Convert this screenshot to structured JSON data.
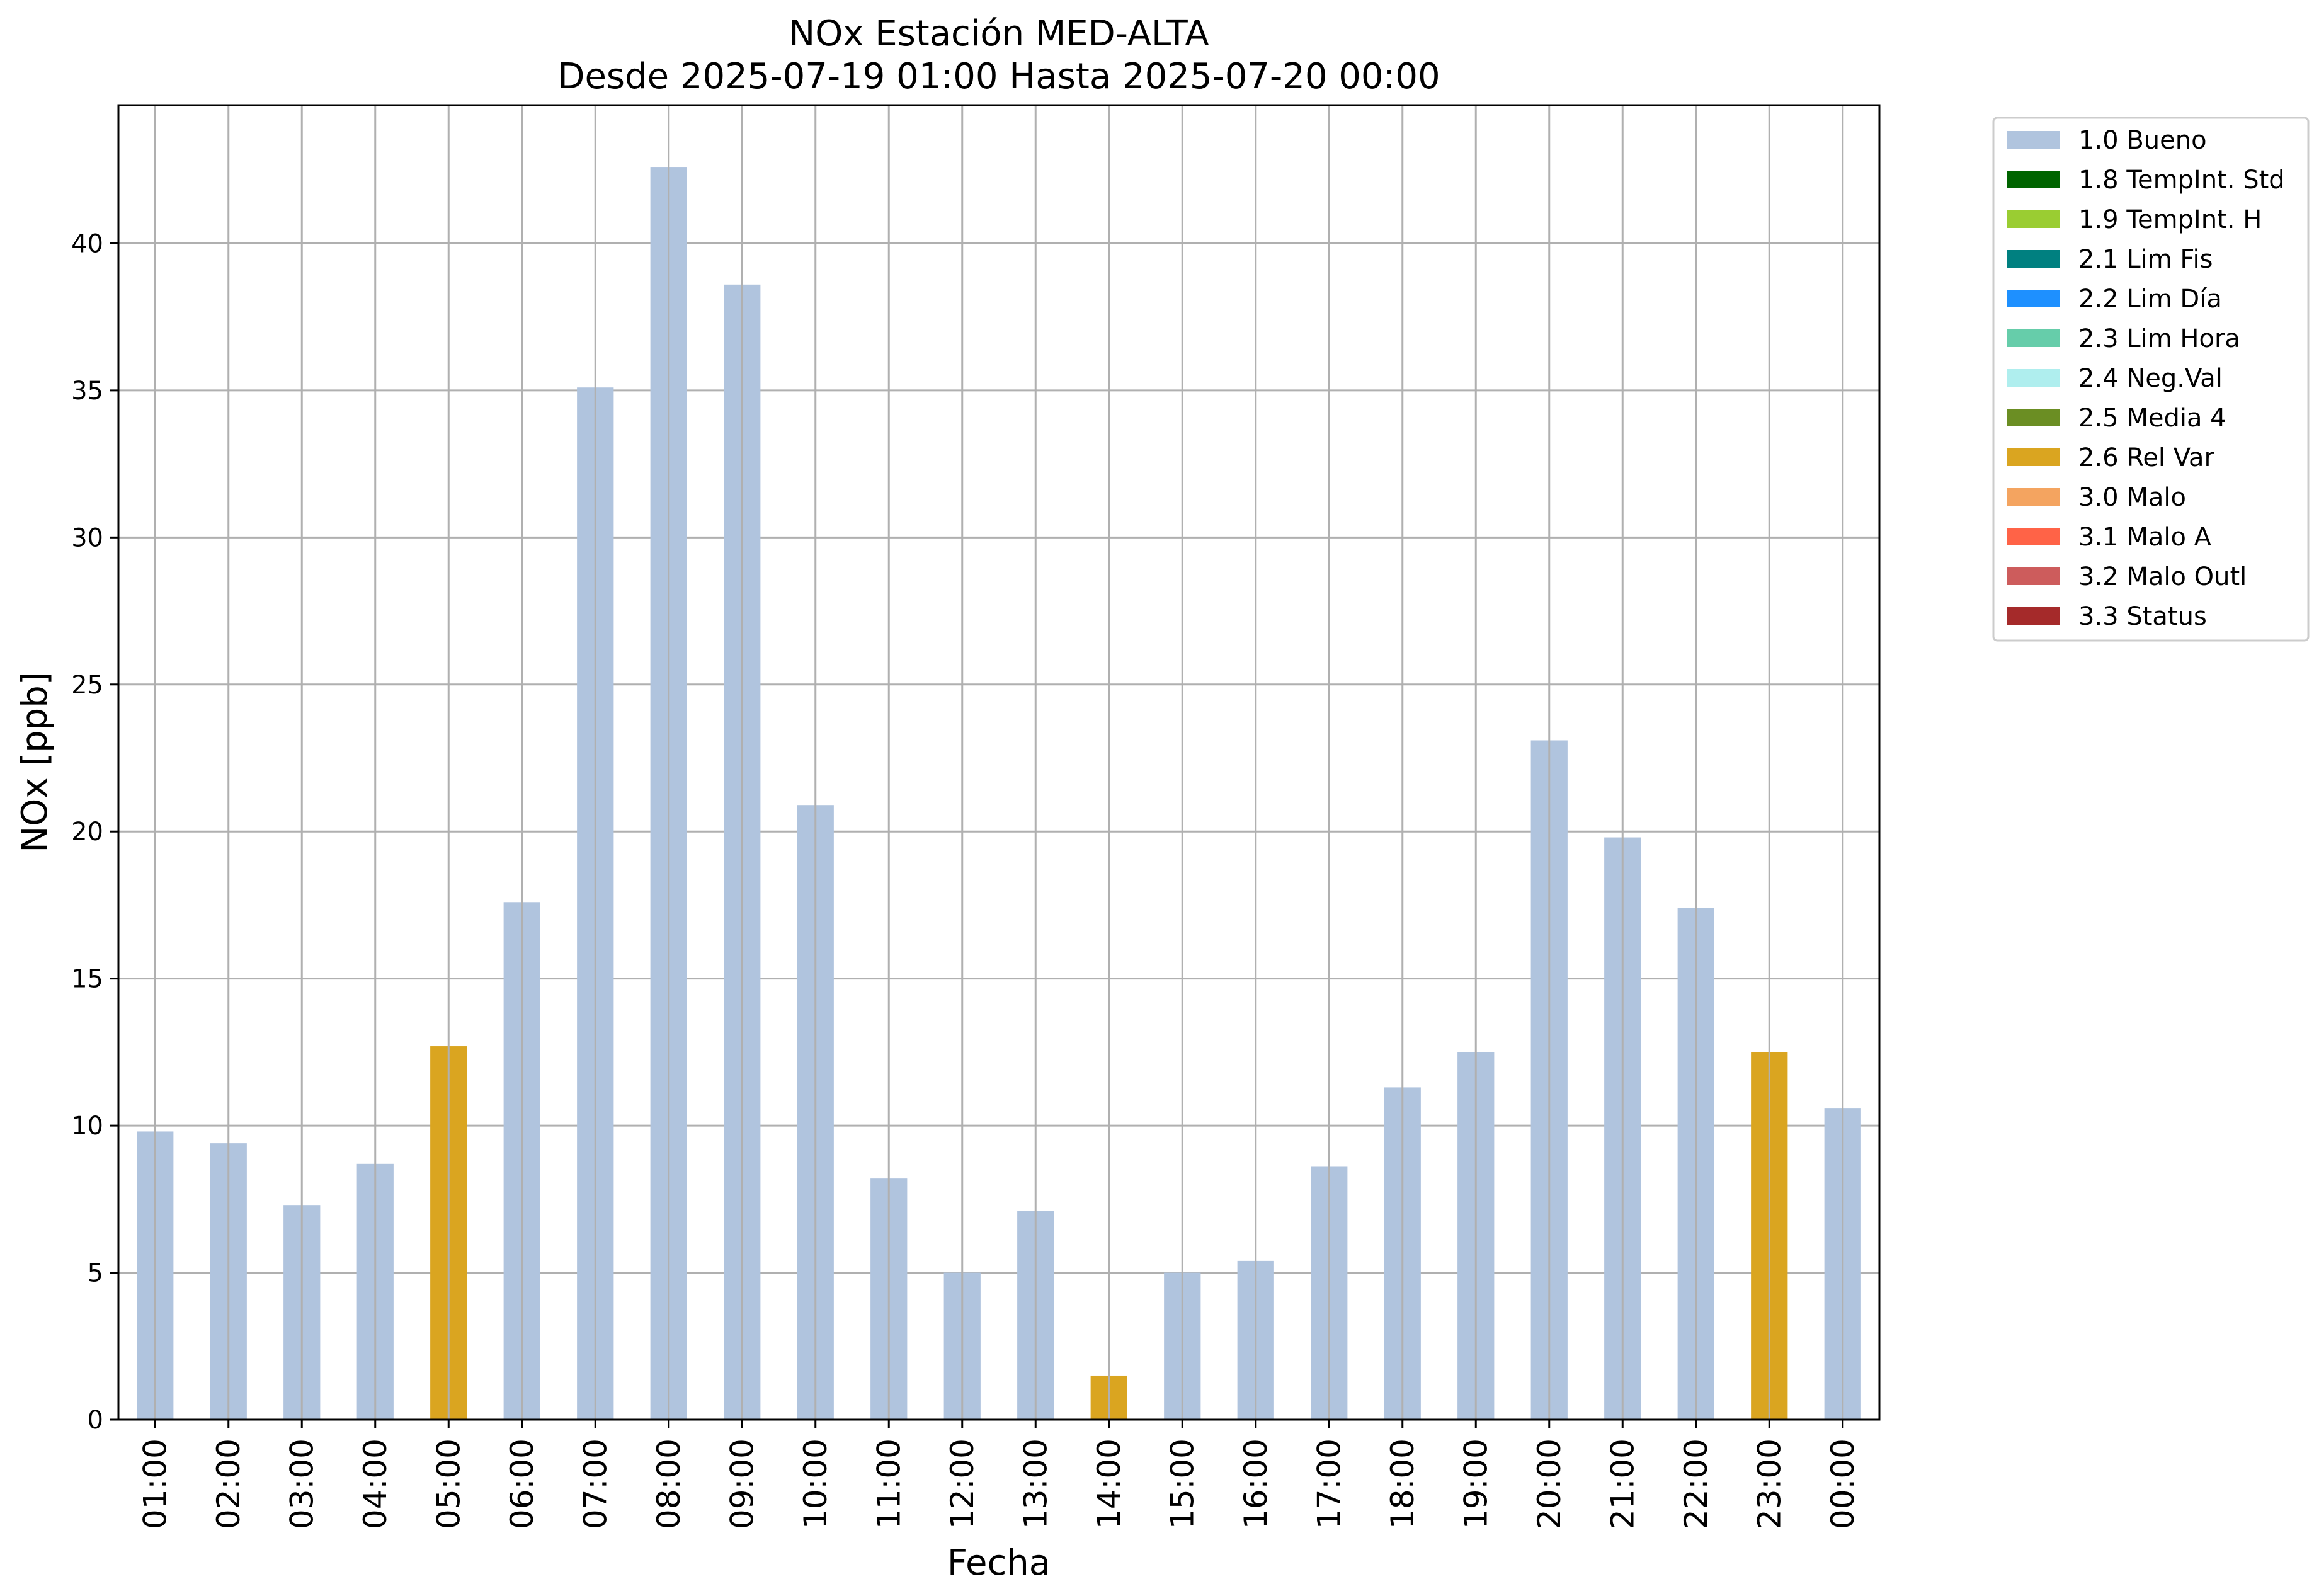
{
  "chart_data": {
    "type": "bar",
    "title": "NOx Estación MED-ALTA",
    "subtitle": "Desde 2025-07-19 01:00 Hasta 2025-07-20 00:00",
    "xlabel": "Fecha",
    "ylabel": "NOx [ppb]",
    "ylim": [
      0,
      44.7
    ],
    "yticks": [
      0,
      5,
      10,
      15,
      20,
      25,
      30,
      35,
      40
    ],
    "grid": true,
    "legend_position": "outside top-right",
    "categories": [
      "01:00",
      "02:00",
      "03:00",
      "04:00",
      "05:00",
      "06:00",
      "07:00",
      "08:00",
      "09:00",
      "10:00",
      "11:00",
      "12:00",
      "13:00",
      "14:00",
      "15:00",
      "16:00",
      "17:00",
      "18:00",
      "19:00",
      "20:00",
      "21:00",
      "22:00",
      "23:00",
      "00:00"
    ],
    "values": [
      9.8,
      9.4,
      7.3,
      8.7,
      12.7,
      17.6,
      35.1,
      42.6,
      38.6,
      20.9,
      8.2,
      5.0,
      7.1,
      1.5,
      5.0,
      5.4,
      8.6,
      11.3,
      12.5,
      23.1,
      19.8,
      17.4,
      12.5,
      10.6
    ],
    "flags": [
      "1.0 Bueno",
      "1.0 Bueno",
      "1.0 Bueno",
      "1.0 Bueno",
      "2.6 Rel Var",
      "1.0 Bueno",
      "1.0 Bueno",
      "1.0 Bueno",
      "1.0 Bueno",
      "1.0 Bueno",
      "1.0 Bueno",
      "1.0 Bueno",
      "1.0 Bueno",
      "2.6 Rel Var",
      "1.0 Bueno",
      "1.0 Bueno",
      "1.0 Bueno",
      "1.0 Bueno",
      "1.0 Bueno",
      "1.0 Bueno",
      "1.0 Bueno",
      "1.0 Bueno",
      "2.6 Rel Var",
      "1.0 Bueno"
    ],
    "legend": [
      {
        "label": "1.0 Bueno",
        "color": "#b0c4de"
      },
      {
        "label": "1.8 TempInt. Std",
        "color": "#006400"
      },
      {
        "label": "1.9 TempInt. H",
        "color": "#9acd32"
      },
      {
        "label": "2.1 Lim Fis",
        "color": "#008080"
      },
      {
        "label": "2.2 Lim Día",
        "color": "#1e90ff"
      },
      {
        "label": "2.3 Lim Hora",
        "color": "#66cdaa"
      },
      {
        "label": "2.4 Neg.Val",
        "color": "#afeeee"
      },
      {
        "label": "2.5 Media 4",
        "color": "#6b8e23"
      },
      {
        "label": "2.6 Rel Var",
        "color": "#daa520"
      },
      {
        "label": "3.0 Malo",
        "color": "#f4a460"
      },
      {
        "label": "3.1 Malo A",
        "color": "#ff6347"
      },
      {
        "label": "3.2 Malo Outl",
        "color": "#cd5c5c"
      },
      {
        "label": "3.3 Status",
        "color": "#a52a2a"
      }
    ]
  }
}
